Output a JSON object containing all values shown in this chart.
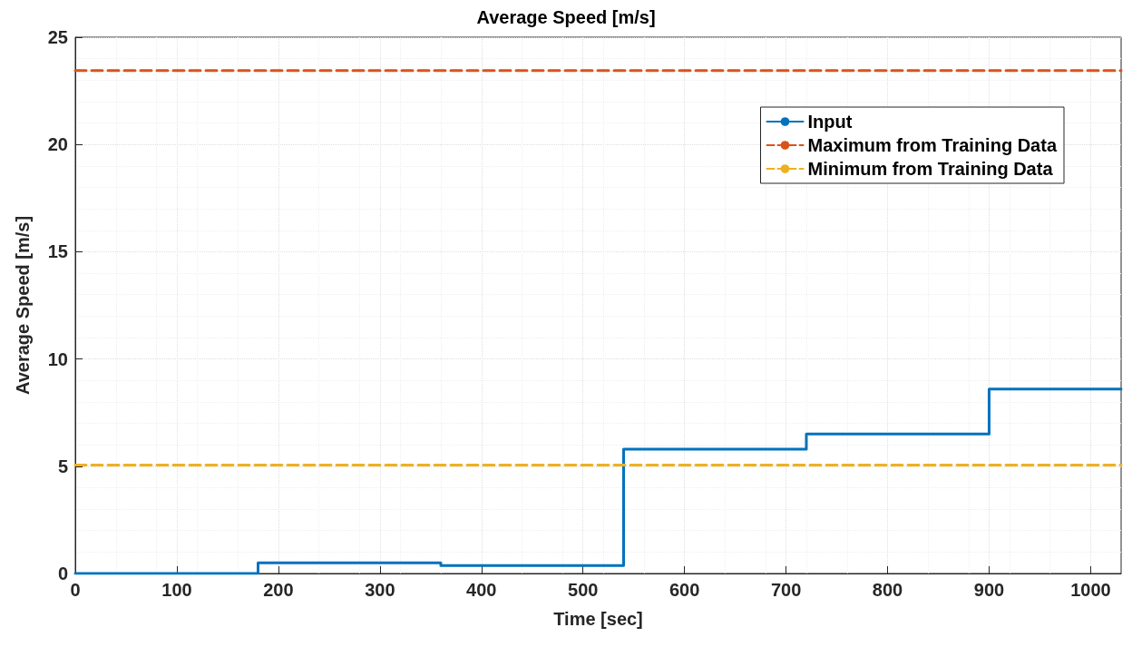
{
  "chart_data": {
    "type": "step",
    "title": "Average Speed [m/s]",
    "xlabel": "Time [sec]",
    "ylabel": "Average Speed [m/s]",
    "xlim": [
      0,
      1030
    ],
    "xticks": [
      0,
      100,
      200,
      300,
      400,
      500,
      600,
      700,
      800,
      900,
      1000
    ],
    "ylim": [
      0,
      25
    ],
    "yticks": [
      0,
      5,
      10,
      15,
      20,
      25
    ],
    "series": [
      {
        "name": "Input",
        "color": "#0072bd",
        "x": [
          0,
          180,
          360,
          540,
          720,
          900,
          1030
        ],
        "values": [
          0,
          0.5,
          0.37,
          5.8,
          6.5,
          8.6,
          8.6
        ]
      },
      {
        "name": "Maximum from Training Data",
        "type": "line",
        "line_style": "dashed",
        "color": "#d95319",
        "x": [
          0,
          1030
        ],
        "values": [
          23.45,
          23.45
        ]
      },
      {
        "name": "Minimum from Training Data",
        "type": "line",
        "line_style": "dashed",
        "color": "#edb120",
        "x": [
          0,
          1030
        ],
        "values": [
          5.05,
          5.05
        ]
      }
    ],
    "grid": true,
    "legend": "top right",
    "marker": "none"
  }
}
